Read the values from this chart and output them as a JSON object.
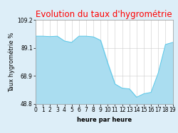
{
  "title": "Evolution du taux d'hygrométrie",
  "xlabel": "heure par heure",
  "ylabel": "Taux hygrométrie %",
  "x": [
    0,
    1,
    2,
    3,
    4,
    5,
    6,
    7,
    8,
    9,
    10,
    11,
    12,
    13,
    14,
    15,
    16,
    17,
    18,
    19
  ],
  "y": [
    97.5,
    97.5,
    97.2,
    97.5,
    94.0,
    93.0,
    97.5,
    97.5,
    97.0,
    94.5,
    78.0,
    63.0,
    60.0,
    59.5,
    53.5,
    56.0,
    57.0,
    71.0,
    91.5,
    93.0
  ],
  "ylim": [
    48.8,
    109.2
  ],
  "yticks": [
    48.8,
    68.9,
    89.1,
    109.2
  ],
  "xticks": [
    0,
    1,
    2,
    3,
    4,
    5,
    6,
    7,
    8,
    9,
    10,
    11,
    12,
    13,
    14,
    15,
    16,
    17,
    18,
    19
  ],
  "line_color": "#5bc8e8",
  "fill_color": "#aaddf0",
  "bg_color": "#ddeef8",
  "plot_bg_color": "#ffffff",
  "title_color": "#ff0000",
  "grid_color": "#cccccc",
  "title_fontsize": 8.5,
  "label_fontsize": 6.0,
  "tick_fontsize": 5.5
}
